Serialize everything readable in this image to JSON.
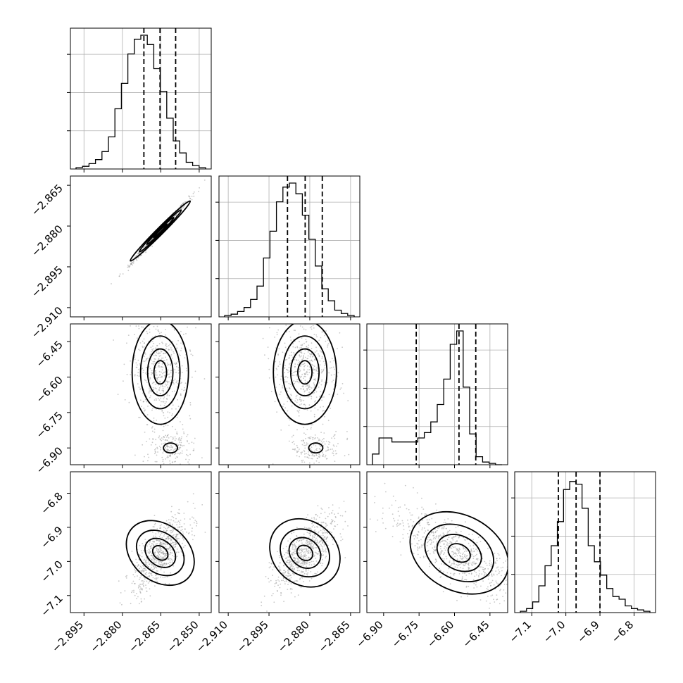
{
  "chart_data": {
    "type": "corner",
    "n_params": 4,
    "axes": [
      {
        "ticks": [
          -2.895,
          -2.88,
          -2.865,
          -2.85
        ],
        "tick_labels": [
          "−2.895",
          "−2.880",
          "−2.865",
          "−2.850"
        ],
        "range": [
          -2.9003,
          -2.8453
        ]
      },
      {
        "ticks": [
          -2.91,
          -2.895,
          -2.88,
          -2.865
        ],
        "tick_labels": [
          "−2.910",
          "−2.895",
          "−2.880",
          "−2.865"
        ],
        "range": [
          -2.9134,
          -2.8616
        ]
      },
      {
        "ticks": [
          -6.9,
          -6.75,
          -6.6,
          -6.45
        ],
        "tick_labels": [
          "−6.90",
          "−6.75",
          "−6.60",
          "−6.45"
        ],
        "range": [
          -6.971,
          -6.375
        ]
      },
      {
        "ticks": [
          -7.1,
          -7.0,
          -6.9,
          -6.8
        ],
        "tick_labels": [
          "−7.1",
          "−7.0",
          "−6.9",
          "−6.8"
        ],
        "range": [
          -7.15,
          -6.737
        ]
      }
    ],
    "quantiles": [
      [
        -2.8716,
        -2.8653,
        -2.8592
      ],
      [
        -2.8882,
        -2.8817,
        -2.8754
      ],
      [
        -6.762,
        -6.581,
        -6.51
      ],
      [
        -7.022,
        -6.97,
        -6.9
      ]
    ],
    "histograms": [
      {
        "counts": [
          0.01,
          0.02,
          0.04,
          0.07,
          0.13,
          0.24,
          0.45,
          0.64,
          0.86,
          0.97,
          1.0,
          0.93,
          0.75,
          0.58,
          0.38,
          0.21,
          0.12,
          0.05,
          0.025,
          0.01
        ]
      },
      {
        "counts": [
          0.01,
          0.02,
          0.04,
          0.07,
          0.13,
          0.23,
          0.44,
          0.64,
          0.86,
          0.97,
          1.0,
          0.92,
          0.76,
          0.58,
          0.38,
          0.21,
          0.12,
          0.05,
          0.025,
          0.01
        ]
      },
      {
        "counts": [
          0.08,
          0.2,
          0.2,
          0.17,
          0.17,
          0.17,
          0.17,
          0.2,
          0.24,
          0.32,
          0.45,
          0.64,
          0.9,
          1.0,
          0.58,
          0.23,
          0.06,
          0.02,
          0.01,
          0.0
        ]
      },
      {
        "counts": [
          0.01,
          0.03,
          0.08,
          0.2,
          0.35,
          0.5,
          0.68,
          0.92,
          0.98,
          0.96,
          0.78,
          0.5,
          0.38,
          0.28,
          0.18,
          0.12,
          0.1,
          0.05,
          0.03,
          0.02,
          0.01
        ]
      }
    ],
    "grid": true
  }
}
